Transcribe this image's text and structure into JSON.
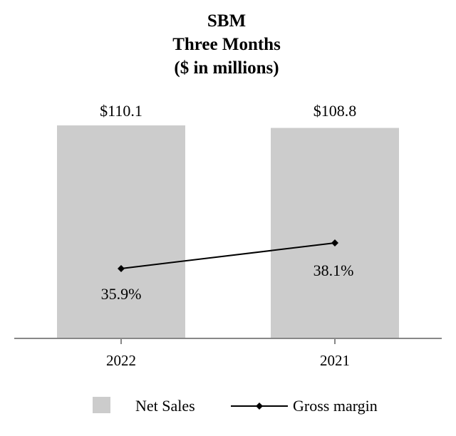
{
  "chart_data": {
    "type": "bar",
    "title": [
      "SBM",
      "Three Months",
      "($ in millions)"
    ],
    "categories": [
      "2022",
      "2021"
    ],
    "series": [
      {
        "name": "Net Sales",
        "kind": "bar",
        "values": [
          110.1,
          108.8
        ],
        "labels": [
          "$110.1",
          "$108.8"
        ],
        "color": "#cccccc"
      },
      {
        "name": "Gross margin",
        "kind": "line",
        "values": [
          35.9,
          38.1
        ],
        "labels": [
          "35.9%",
          "38.1%"
        ],
        "color": "#000000"
      }
    ],
    "ylim_bars": [
      0,
      110.1
    ],
    "ylim_line": [
      0,
      100
    ],
    "xlabel": "",
    "ylabel": "",
    "grid": false,
    "legend_position": "bottom"
  }
}
